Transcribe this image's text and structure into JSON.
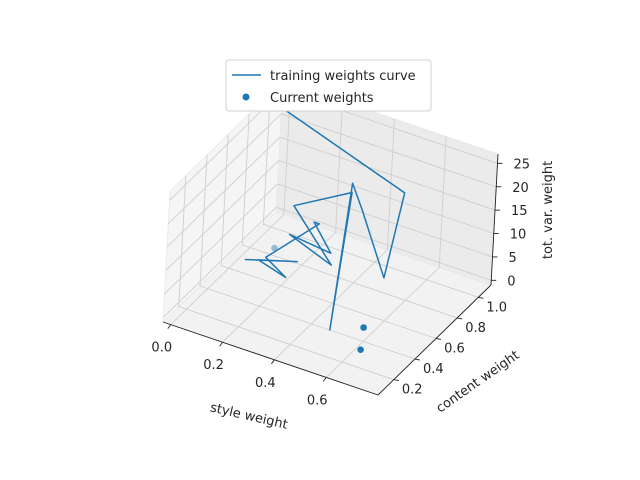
{
  "chart_data": {
    "type": "line",
    "projection": "3d",
    "colors": {
      "series": "#1f77b4"
    },
    "legend": {
      "placement": "top-center",
      "entries": [
        "training weights curve",
        "Current weights"
      ]
    },
    "axes": {
      "x": {
        "label": "style weight",
        "ticks": [
          "0.0",
          "0.2",
          "0.4",
          "0.6"
        ],
        "lim": [
          -0.03,
          0.8
        ]
      },
      "y": {
        "label": "content weight",
        "ticks": [
          "0.2",
          "0.4",
          "0.6",
          "0.8",
          "1.0"
        ],
        "lim": [
          0.05,
          1.12
        ]
      },
      "z": {
        "label": "tot. var. weight",
        "ticks": [
          "0",
          "5",
          "10",
          "15",
          "20",
          "25"
        ],
        "lim": [
          -1,
          27
        ]
      }
    },
    "grid": true,
    "series": [
      {
        "name": "training weights curve",
        "kind": "line",
        "points": [
          [
            0.04,
            0.65,
            0.5
          ],
          [
            0.19,
            0.78,
            0.0
          ],
          [
            0.08,
            0.68,
            0.5
          ],
          [
            0.21,
            0.62,
            0.5
          ],
          [
            0.1,
            0.7,
            1.0
          ],
          [
            0.22,
            0.9,
            6.0
          ],
          [
            0.2,
            0.9,
            6.0
          ],
          [
            0.3,
            0.82,
            3.0
          ],
          [
            0.14,
            0.82,
            4.0
          ],
          [
            0.35,
            0.7,
            4.0
          ],
          [
            0.12,
            0.9,
            8.0
          ],
          [
            0.3,
            1.0,
            12.0
          ],
          [
            0.49,
            0.35,
            0.5
          ],
          [
            0.3,
            1.0,
            14.0
          ],
          [
            0.38,
            0.9,
            12.0
          ],
          [
            0.59,
            0.6,
            8.0
          ],
          [
            0.53,
            0.92,
            18.0
          ],
          [
            0.05,
            0.95,
            26.0
          ]
        ]
      },
      {
        "name": "Current weights",
        "kind": "scatter",
        "points": [
          [
            0.63,
            0.3,
            0.0
          ],
          [
            0.58,
            0.45,
            0.5
          ],
          [
            0.15,
            0.65,
            5.0
          ]
        ]
      }
    ]
  }
}
